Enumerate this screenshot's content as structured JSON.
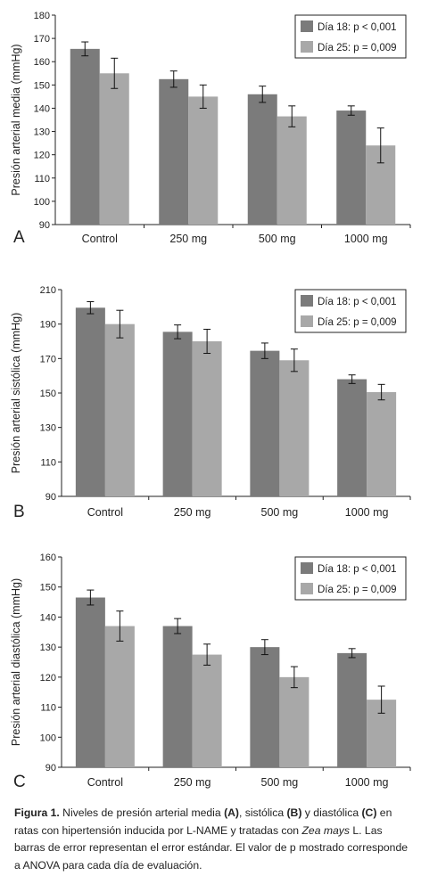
{
  "chart_data": [
    {
      "type": "bar",
      "panel_letter": "A",
      "ylabel": "Presión arterial media (mmHg)",
      "ylim": [
        90,
        180
      ],
      "yticks": [
        90,
        100,
        110,
        120,
        130,
        140,
        150,
        160,
        170,
        180
      ],
      "categories": [
        "Control",
        "250 mg",
        "500 mg",
        "1000 mg"
      ],
      "series": [
        {
          "name": "Día 18: p < 0,001",
          "color": "#7b7b7b",
          "values": [
            165.5,
            152.5,
            146,
            139
          ],
          "errors": [
            3,
            3.5,
            3.5,
            2
          ]
        },
        {
          "name": "Día 25: p = 0,009",
          "color": "#a8a8a8",
          "values": [
            155,
            145,
            136.5,
            124
          ],
          "errors": [
            6.5,
            5,
            4.5,
            7.5
          ]
        }
      ],
      "legend_position": "top-right"
    },
    {
      "type": "bar",
      "panel_letter": "B",
      "ylabel": "Presión arterial sistólica (mmHg)",
      "ylim": [
        90,
        210
      ],
      "yticks": [
        90,
        110,
        130,
        150,
        170,
        190,
        210
      ],
      "categories": [
        "Control",
        "250 mg",
        "500 mg",
        "1000 mg"
      ],
      "series": [
        {
          "name": "Día 18: p < 0,001",
          "color": "#7b7b7b",
          "values": [
            199.5,
            185.5,
            174.5,
            158
          ],
          "errors": [
            3.5,
            4,
            4.5,
            2.5
          ]
        },
        {
          "name": "Día 25: p = 0,009",
          "color": "#a8a8a8",
          "values": [
            190,
            180,
            169,
            150.5
          ],
          "errors": [
            8,
            7,
            6.5,
            4.5
          ]
        }
      ],
      "legend_position": "top-right"
    },
    {
      "type": "bar",
      "panel_letter": "C",
      "ylabel": "Presión arterial diastólica (mmHg)",
      "ylim": [
        90,
        160
      ],
      "yticks": [
        90,
        100,
        110,
        120,
        130,
        140,
        150,
        160
      ],
      "categories": [
        "Control",
        "250 mg",
        "500 mg",
        "1000 mg"
      ],
      "series": [
        {
          "name": "Día 18: p < 0,001",
          "color": "#7b7b7b",
          "values": [
            146.5,
            137,
            130,
            128
          ],
          "errors": [
            2.5,
            2.5,
            2.5,
            1.5
          ]
        },
        {
          "name": "Día 25: p = 0,009",
          "color": "#a8a8a8",
          "values": [
            137,
            127.5,
            120,
            112.5
          ],
          "errors": [
            5,
            3.5,
            3.5,
            4.5
          ]
        }
      ],
      "legend_position": "top-right"
    }
  ],
  "caption": {
    "label": "Figura 1.",
    "t1": " Niveles de presión arterial media ",
    "a": "(A)",
    "t2": ", sistólica ",
    "b": "(B)",
    "t3": " y diastólica ",
    "c": "(C)",
    "t4": " en ratas con hipertensión inducida por L-NAME y tratadas con ",
    "species": "Zea mays",
    "t5": " L. Las barras de error representan el error estándar. El valor de p mostrado corresponde a ANOVA para cada día de evaluación."
  }
}
